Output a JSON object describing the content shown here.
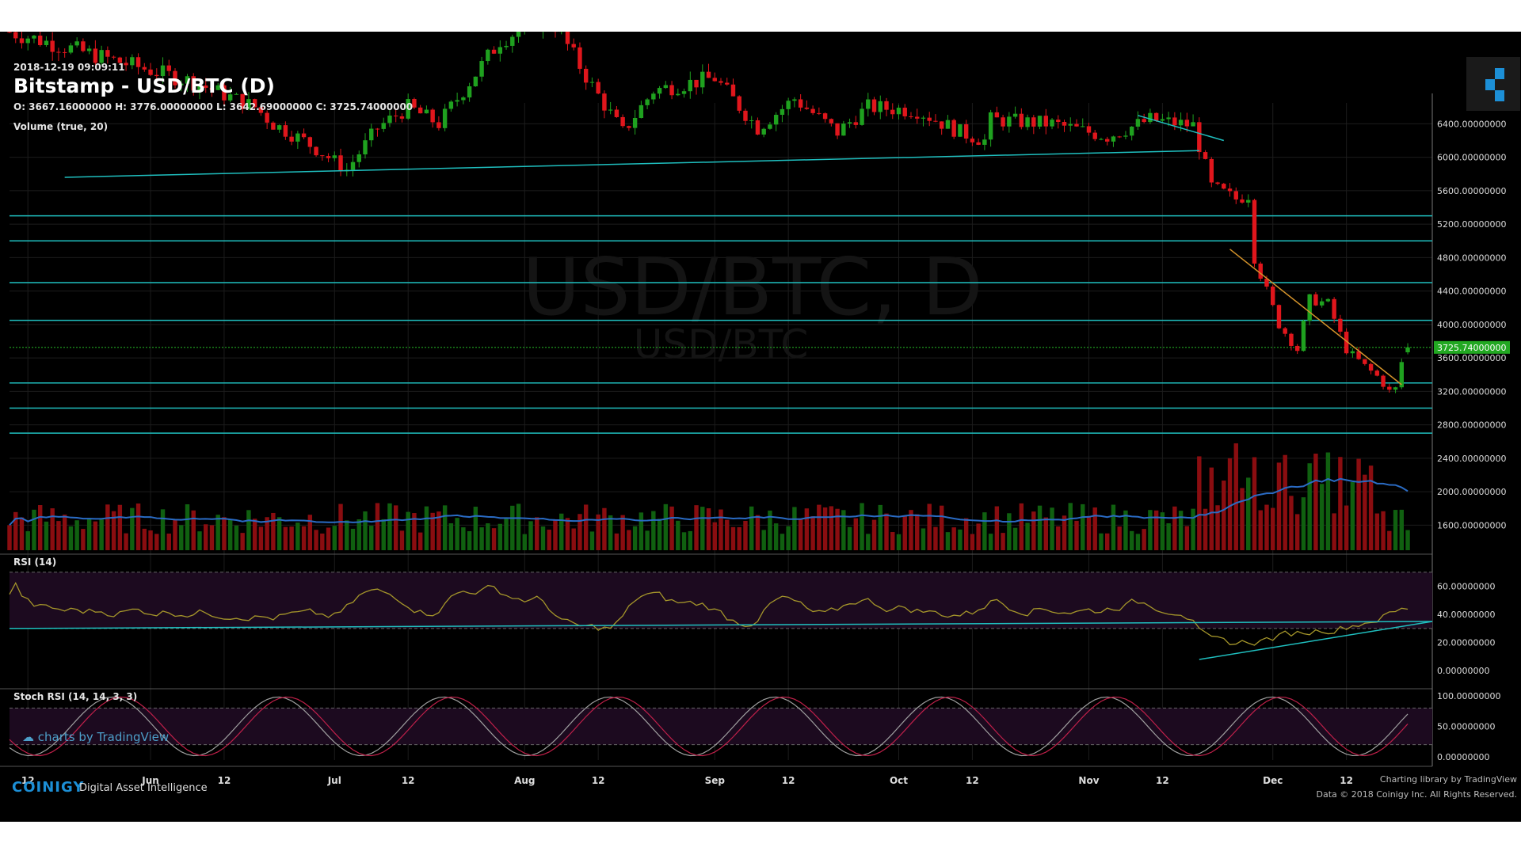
{
  "header": {
    "timestamp": "2018-12-19 09:09:11",
    "title": "Bitstamp - USD/BTC (D)",
    "ohlc": "O: 3667.16000000 H: 3776.00000000 L: 3642.69000000 C: 3725.74000000",
    "volume_label": "Volume (true, 20)",
    "rsi_label": "RSI (14)",
    "stoch_label": "Stoch RSI (14, 14, 3, 3)",
    "watermark_main": "USD/BTC, D",
    "watermark_sub": "USD/BTC",
    "tv_link": "charts by TradingView"
  },
  "footer": {
    "brand": "COINIGY",
    "tagline": "Digital Asset Intelligence",
    "credit_line1": "Charting library by  TradingView",
    "credit_line2": "Data © 2018  Coinigy Inc. All Rights Reserved."
  },
  "colors": {
    "up": "#1fa11f",
    "down": "#e0161c",
    "level_line": "#1fbfbf",
    "trend_line": "#d4932b",
    "rsi_line": "#a5962a",
    "stoch_k": "#a0a0a0",
    "stoch_d": "#c0204a",
    "last_price_bg": "#22a822"
  },
  "chart_data": {
    "type": "candlestick",
    "last_price": 3725.74,
    "last_price_label": "3725.74000000",
    "price_axis": {
      "ylim": [
        1300,
        6650
      ],
      "ticks": [
        "6400.00000000",
        "6000.00000000",
        "5600.00000000",
        "5200.00000000",
        "4800.00000000",
        "4400.00000000",
        "4000.00000000",
        "3600.00000000",
        "3200.00000000",
        "2800.00000000",
        "2400.00000000",
        "2000.00000000",
        "1600.00000000"
      ]
    },
    "rsi_axis": {
      "ylim": [
        -10,
        80
      ],
      "ticks": [
        "60.00000000",
        "40.00000000",
        "20.00000000",
        "0.00000000"
      ],
      "bands": [
        70,
        30
      ]
    },
    "stoch_axis": {
      "ylim": [
        -5,
        105
      ],
      "ticks": [
        "100.00000000",
        "50.00000000",
        "0.00000000"
      ],
      "bands": [
        80,
        20
      ]
    },
    "x_labels": [
      "12",
      "Jun",
      "12",
      "Jul",
      "12",
      "Aug",
      "12",
      "Sep",
      "12",
      "Oct",
      "12",
      "Nov",
      "12",
      "Dec",
      "12"
    ],
    "x_label_days": [
      -7,
      13,
      25,
      43,
      55,
      74,
      86,
      105,
      117,
      135,
      147,
      166,
      178,
      196,
      208
    ],
    "day_range": [
      -10,
      222
    ],
    "price_levels": [
      5300,
      5000,
      4500,
      4050,
      3300,
      3000,
      2700
    ],
    "support_line": [
      [
        -1,
        5760
      ],
      [
        184,
        6080
      ]
    ],
    "descending_lines": [
      {
        "color": "trend_line",
        "points": [
          [
            189,
            4900
          ],
          [
            217,
            3280
          ]
        ]
      },
      {
        "color": "level_line",
        "points": [
          [
            174,
            6500
          ],
          [
            188,
            6200
          ]
        ]
      }
    ],
    "rsi_lines": [
      [
        -10,
        30
      ],
      [
        222,
        35
      ]
    ],
    "rsi_support": [
      [
        184,
        8
      ],
      [
        222,
        35
      ]
    ],
    "key_points": [
      [
        -10,
        7500
      ],
      [
        20,
        6900
      ],
      [
        30,
        6600
      ],
      [
        33,
        6400
      ],
      [
        38,
        6200
      ],
      [
        45,
        5850
      ],
      [
        50,
        6350
      ],
      [
        55,
        6600
      ],
      [
        60,
        6400
      ],
      [
        70,
        7400
      ],
      [
        78,
        7700
      ],
      [
        85,
        6850
      ],
      [
        90,
        6300
      ],
      [
        95,
        6800
      ],
      [
        105,
        6950
      ],
      [
        112,
        6350
      ],
      [
        118,
        6700
      ],
      [
        125,
        6300
      ],
      [
        130,
        6600
      ],
      [
        138,
        6560
      ],
      [
        145,
        6300
      ],
      [
        149,
        6200
      ],
      [
        150,
        6450
      ],
      [
        160,
        6400
      ],
      [
        169,
        6250
      ],
      [
        176,
        6450
      ],
      [
        183,
        6380
      ],
      [
        186,
        5650
      ],
      [
        190,
        5500
      ],
      [
        192,
        5550
      ],
      [
        193,
        4800
      ],
      [
        197,
        4000
      ],
      [
        200,
        3700
      ],
      [
        202,
        4300
      ],
      [
        205,
        4250
      ],
      [
        208,
        3700
      ],
      [
        211,
        3500
      ],
      [
        213,
        3380
      ],
      [
        215,
        3200
      ],
      [
        216,
        3230
      ],
      [
        217,
        3550
      ],
      [
        218,
        3725
      ]
    ]
  }
}
